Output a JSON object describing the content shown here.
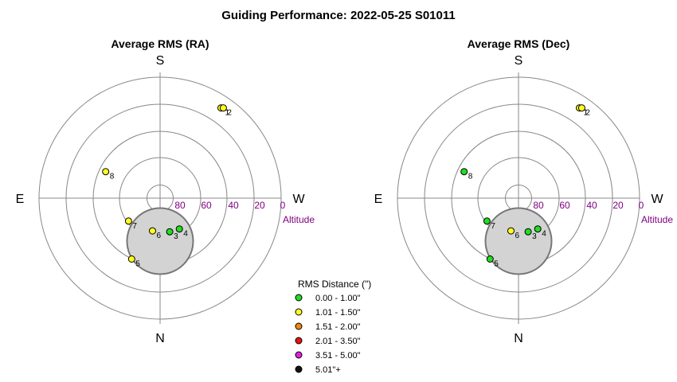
{
  "title": "Guiding Performance: 2022-05-25 S01011",
  "chart_data": [
    {
      "type": "scatter",
      "polar": true,
      "title": "Average RMS (RA)",
      "compass": {
        "top": "S",
        "bottom": "N",
        "left": "E",
        "right": "W"
      },
      "altitude_label": "Altitude",
      "altitude_ticks": [
        "80",
        "60",
        "40",
        "20",
        "0"
      ],
      "altitude_range": [
        0,
        90
      ],
      "points": [
        {
          "label": "1",
          "azimuth": 56,
          "altitude": 9,
          "category": 1
        },
        {
          "label": "2",
          "azimuth": 55,
          "altitude": 8,
          "category": 1
        },
        {
          "label": "3",
          "azimuth": 286,
          "altitude": 64,
          "category": 0
        },
        {
          "label": "4",
          "azimuth": 302,
          "altitude": 63,
          "category": 0
        },
        {
          "label": "5",
          "azimuth": 245,
          "altitude": 40,
          "category": 1
        },
        {
          "label": "6",
          "azimuth": 257,
          "altitude": 65,
          "category": 1
        },
        {
          "label": "7",
          "azimuth": 216,
          "altitude": 61,
          "category": 1
        },
        {
          "label": "8",
          "azimuth": 154,
          "altitude": 45,
          "category": 1
        }
      ]
    },
    {
      "type": "scatter",
      "polar": true,
      "title": "Average RMS (Dec)",
      "compass": {
        "top": "S",
        "bottom": "N",
        "left": "E",
        "right": "W"
      },
      "altitude_label": "Altitude",
      "altitude_ticks": [
        "80",
        "60",
        "40",
        "20",
        "0"
      ],
      "altitude_range": [
        0,
        90
      ],
      "points": [
        {
          "label": "1",
          "azimuth": 56,
          "altitude": 9,
          "category": 1
        },
        {
          "label": "2",
          "azimuth": 55,
          "altitude": 8,
          "category": 1
        },
        {
          "label": "3",
          "azimuth": 286,
          "altitude": 64,
          "category": 0
        },
        {
          "label": "4",
          "azimuth": 302,
          "altitude": 63,
          "category": 0
        },
        {
          "label": "5",
          "azimuth": 245,
          "altitude": 40,
          "category": 0
        },
        {
          "label": "6",
          "azimuth": 257,
          "altitude": 65,
          "category": 1
        },
        {
          "label": "7",
          "azimuth": 216,
          "altitude": 61,
          "category": 0
        },
        {
          "label": "8",
          "azimuth": 154,
          "altitude": 45,
          "category": 0
        }
      ]
    }
  ],
  "legend": {
    "title": "RMS Distance (\")",
    "items": [
      {
        "label": "0.00 - 1.00\"",
        "color": "#22dd22"
      },
      {
        "label": "1.01 - 1.50\"",
        "color": "#ffff22"
      },
      {
        "label": "1.51 - 2.00\"",
        "color": "#ee8811"
      },
      {
        "label": "2.01 - 3.50\"",
        "color": "#ee1111"
      },
      {
        "label": "3.51 - 5.00\"",
        "color": "#dd22dd"
      },
      {
        "label": "5.01\"+",
        "color": "#111111"
      }
    ]
  }
}
